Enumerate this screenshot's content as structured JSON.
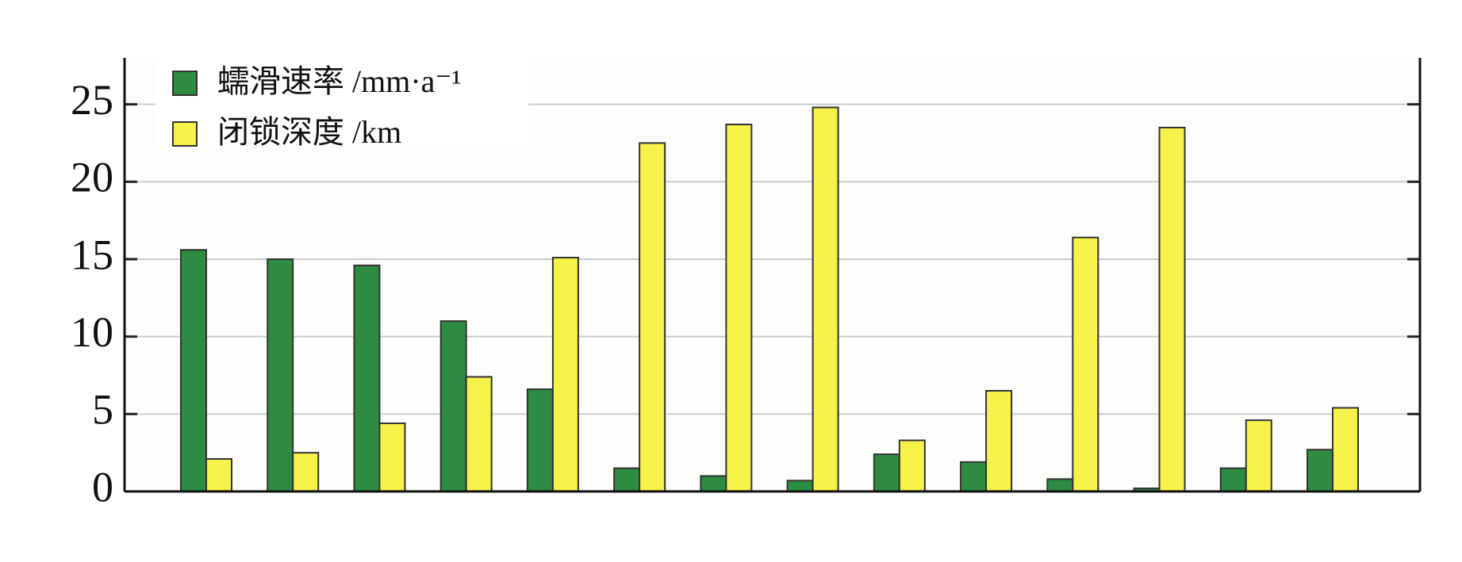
{
  "chart_data": {
    "type": "bar",
    "categories": [
      null,
      null,
      null,
      null,
      null,
      null,
      null,
      null,
      null,
      null,
      null,
      null,
      null,
      null
    ],
    "series": [
      {
        "name": "蠕滑速率 /mm·a⁻¹",
        "color": "#2e8b42",
        "values": [
          15.6,
          15.0,
          14.6,
          11.0,
          6.6,
          1.5,
          1.0,
          0.7,
          2.4,
          1.9,
          0.8,
          0.2,
          1.5,
          2.7
        ]
      },
      {
        "name": "闭锁深度 /km",
        "color": "#f5f24a",
        "values": [
          2.1,
          2.5,
          4.4,
          7.4,
          15.1,
          22.5,
          23.7,
          24.8,
          3.3,
          6.5,
          16.4,
          23.5,
          4.6,
          5.4
        ]
      }
    ],
    "ylim": [
      0,
      28
    ],
    "yticks": [
      0,
      5,
      10,
      15,
      20,
      25
    ],
    "grid": true,
    "legend": "upper left"
  }
}
